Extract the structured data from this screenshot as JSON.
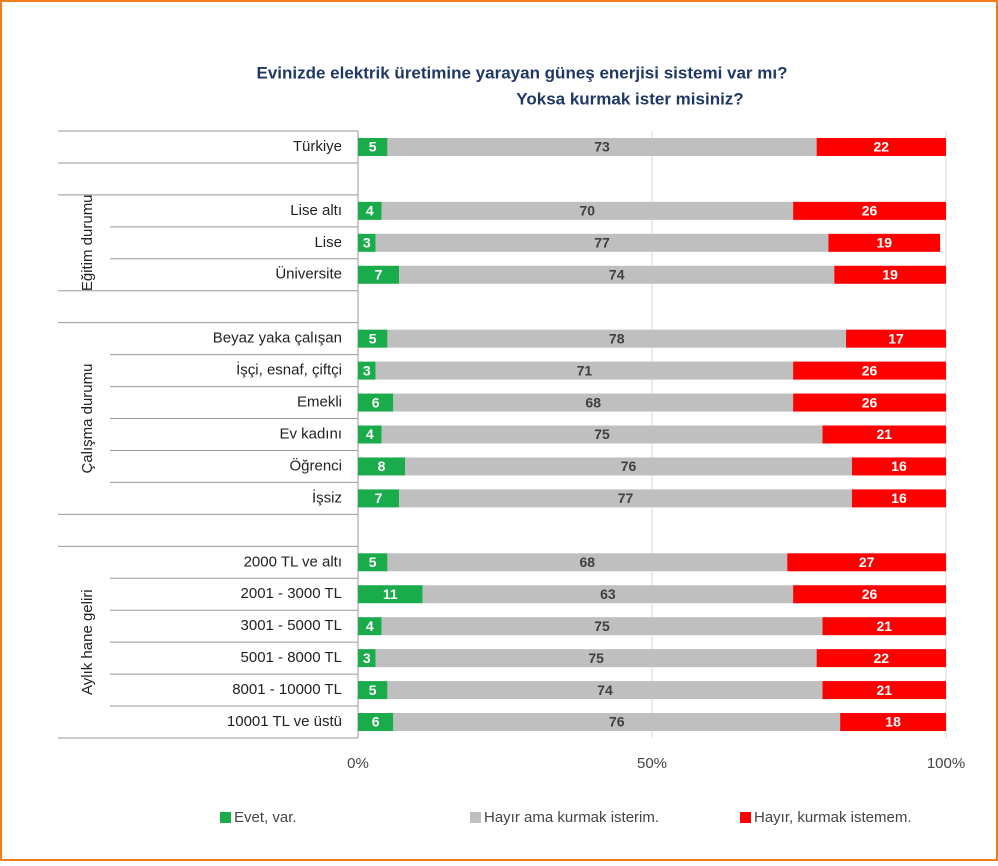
{
  "chart_data": {
    "type": "stacked-bar-horizontal",
    "title": [
      "Evinizde elektrik üretimine yarayan güneş enerjisi sistemi var mı?",
      "Yoksa kurmak ister misiniz?"
    ],
    "categories": [
      "Türkiye",
      null,
      "Lise altı",
      "Lise",
      "Üniversite",
      null,
      "Beyaz yaka çalışan",
      "İşçi, esnaf, çiftçi",
      "Emekli",
      "Ev kadını",
      "Öğrenci",
      "İşsiz",
      null,
      "2000 TL ve altı",
      "2001 - 3000 TL",
      "3001 - 5000 TL",
      "5001 - 8000 TL",
      "8001 - 10000 TL",
      "10001 TL ve üstü"
    ],
    "groups": [
      "Eğitim durumu",
      "Çalışma durumu",
      "Aylık hane geliri"
    ],
    "series": [
      {
        "name": "Evet, var.",
        "color": "#1aab4b",
        "values": [
          5,
          null,
          4,
          3,
          7,
          null,
          5,
          3,
          6,
          4,
          8,
          7,
          null,
          5,
          11,
          4,
          3,
          5,
          6
        ]
      },
      {
        "name": "Hayır ama kurmak isterim.",
        "color": "#bfbfbf",
        "values": [
          73,
          null,
          70,
          77,
          74,
          null,
          78,
          71,
          68,
          75,
          76,
          77,
          null,
          68,
          63,
          75,
          75,
          74,
          76
        ]
      },
      {
        "name": "Hayır, kurmak istemem.",
        "color": "#ff0000",
        "values": [
          22,
          null,
          26,
          19,
          19,
          null,
          17,
          26,
          26,
          21,
          16,
          16,
          null,
          27,
          26,
          21,
          22,
          21,
          18
        ]
      }
    ],
    "xlim": [
      0,
      100
    ],
    "xticks": [
      {
        "value": 0,
        "label": "0%"
      },
      {
        "value": 50,
        "label": "50%"
      },
      {
        "value": 100,
        "label": "100%"
      }
    ],
    "grid": true,
    "legend": "bottom"
  }
}
